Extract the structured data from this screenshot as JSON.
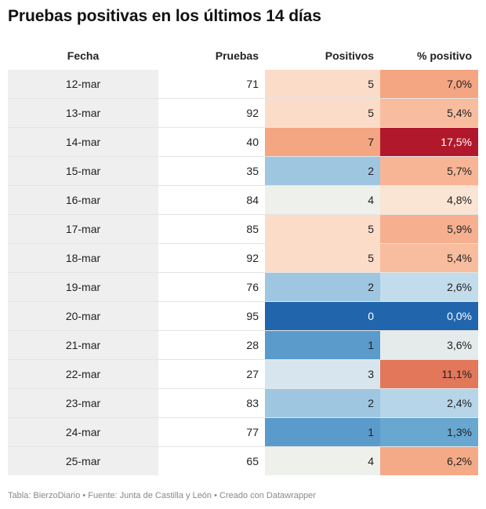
{
  "title": "Pruebas positivas en los últimos 14 días",
  "footer": "Tabla: BierzoDiario • Fuente: Junta de Castilla y León • Creado con Datawrapper",
  "chart_data": {
    "type": "table",
    "columns": [
      "Fecha",
      "Pruebas",
      "Positivos",
      "% positivo"
    ],
    "rows": [
      {
        "fecha": "12-mar",
        "pruebas": "71",
        "positivos": "5",
        "pct": "7,0%",
        "pos_color": "#fbdcc9",
        "pct_color": "#f4a582"
      },
      {
        "fecha": "13-mar",
        "pruebas": "92",
        "positivos": "5",
        "pct": "5,4%",
        "pos_color": "#fbdcc9",
        "pct_color": "#f8bc9f"
      },
      {
        "fecha": "14-mar",
        "pruebas": "40",
        "positivos": "7",
        "pct": "17,5%",
        "pos_color": "#f4a582",
        "pct_color": "#b2182b"
      },
      {
        "fecha": "15-mar",
        "pruebas": "35",
        "positivos": "2",
        "pct": "5,7%",
        "pos_color": "#9fc6e0",
        "pct_color": "#f7b596"
      },
      {
        "fecha": "16-mar",
        "pruebas": "84",
        "positivos": "4",
        "pct": "4,8%",
        "pos_color": "#eef0eb",
        "pct_color": "#fae4d4"
      },
      {
        "fecha": "17-mar",
        "pruebas": "85",
        "positivos": "5",
        "pct": "5,9%",
        "pos_color": "#fbdcc9",
        "pct_color": "#f6b08f"
      },
      {
        "fecha": "18-mar",
        "pruebas": "92",
        "positivos": "5",
        "pct": "5,4%",
        "pos_color": "#fbdcc9",
        "pct_color": "#f8bc9f"
      },
      {
        "fecha": "19-mar",
        "pruebas": "76",
        "positivos": "2",
        "pct": "2,6%",
        "pos_color": "#9fc6e0",
        "pct_color": "#c3dcec"
      },
      {
        "fecha": "20-mar",
        "pruebas": "95",
        "positivos": "0",
        "pct": "0,0%",
        "pos_color": "#2166ac",
        "pct_color": "#2166ac"
      },
      {
        "fecha": "21-mar",
        "pruebas": "28",
        "positivos": "1",
        "pct": "3,6%",
        "pos_color": "#5b9bcb",
        "pct_color": "#e4ebea"
      },
      {
        "fecha": "22-mar",
        "pruebas": "27",
        "positivos": "3",
        "pct": "11,1%",
        "pos_color": "#d7e6ee",
        "pct_color": "#e2775a"
      },
      {
        "fecha": "23-mar",
        "pruebas": "83",
        "positivos": "2",
        "pct": "2,4%",
        "pos_color": "#9fc6e0",
        "pct_color": "#b7d5e8"
      },
      {
        "fecha": "24-mar",
        "pruebas": "77",
        "positivos": "1",
        "pct": "1,3%",
        "pos_color": "#5b9bcb",
        "pct_color": "#67a7d0"
      },
      {
        "fecha": "25-mar",
        "pruebas": "65",
        "positivos": "4",
        "pct": "6,2%",
        "pos_color": "#eef0eb",
        "pct_color": "#f5aa87"
      }
    ]
  }
}
